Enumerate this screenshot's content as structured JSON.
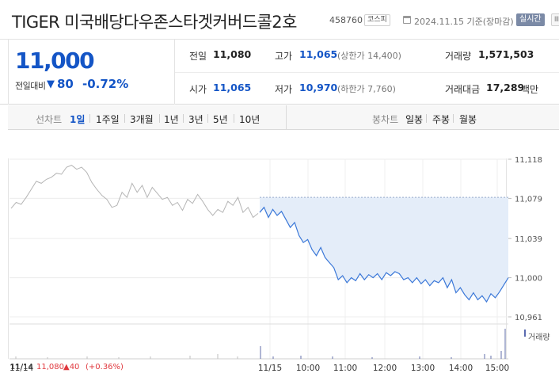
{
  "header": {
    "title": "TIGER 미국배당다우존스타겟커버드콜2호",
    "code": "458760",
    "market": "코스피",
    "date": "2024.11.15 기준(장마감)",
    "realtime_label": "실시간",
    "more_label": "Ⅲ"
  },
  "quote": {
    "price": "11,000",
    "change_label": "전일대비",
    "change_value": "80",
    "change_pct": "-0.72%"
  },
  "stats": {
    "prev_close_label": "전일",
    "prev_close": "11,080",
    "high_label": "고가",
    "high": "11,065",
    "upper_limit": "(상한가 14,400)",
    "volume_label": "거래량",
    "volume": "1,571,503",
    "open_label": "시가",
    "open": "11,065",
    "low_label": "저가",
    "low": "10,970",
    "lower_limit": "(하한가 7,760)",
    "amount_label": "거래대금",
    "amount": "17,289",
    "amount_unit": "백만"
  },
  "periods": {
    "label": "선차트",
    "options": [
      "1일",
      "1주일",
      "3개월",
      "1년",
      "3년",
      "5년",
      "10년"
    ],
    "active_index": 0,
    "candle_label": "봉차트",
    "candle_options": [
      "일봉",
      "주봉",
      "월봉"
    ]
  },
  "chart_data": {
    "type": "line",
    "title": "",
    "y_ticks": [
      "11,118",
      "11,079",
      "11,039",
      "11,000",
      "10,961"
    ],
    "ylim": [
      10961,
      11118
    ],
    "prev_close": 11080,
    "x_ticks": [
      "11/15",
      "10:00",
      "11:00",
      "12:00",
      "13:00",
      "14:00",
      "15:00"
    ],
    "x_left_label": "11/14",
    "volume_label": "거래량",
    "series": [
      {
        "name": "11/14",
        "color": "#b5b5b5",
        "values": [
          11069,
          11075,
          11073,
          11080,
          11088,
          11096,
          11094,
          11098,
          11100,
          11104,
          11103,
          11110,
          11112,
          11108,
          11110,
          11105,
          11095,
          11088,
          11082,
          11078,
          11070,
          11072,
          11085,
          11080,
          11094,
          11085,
          11092,
          11080,
          11090,
          11084,
          11078,
          11080,
          11072,
          11075,
          11067,
          11078,
          11074,
          11083,
          11076,
          11068,
          11062,
          11068,
          11065,
          11076,
          11072,
          11080,
          11065,
          11070,
          11060,
          11064
        ]
      },
      {
        "name": "11/15",
        "color": "#3b78d8",
        "values": [
          11065,
          11070,
          11060,
          11068,
          11062,
          11066,
          11058,
          11050,
          11055,
          11042,
          11035,
          11038,
          11028,
          11022,
          11030,
          11020,
          11015,
          11010,
          10998,
          11002,
          10995,
          11000,
          10997,
          11004,
          10998,
          11003,
          11000,
          11004,
          10998,
          11005,
          11002,
          11006,
          11004,
          10998,
          11000,
          10995,
          11000,
          10994,
          10998,
          10992,
          10997,
          10995,
          11000,
          10990,
          10998,
          10985,
          10990,
          10983,
          10978,
          10985,
          10978,
          10982,
          10976,
          10984,
          10980,
          10986,
          10993,
          11000
        ]
      }
    ]
  },
  "footer": {
    "date": "11/14",
    "price": "11,080",
    "change": "▲40",
    "pct": "(+0.36%)"
  },
  "colors": {
    "accent": "#1455c6",
    "up": "#e0383e",
    "prev_line": "#b5b5b5",
    "cur_line": "#3b78d8",
    "fill": "#e4edf9"
  }
}
